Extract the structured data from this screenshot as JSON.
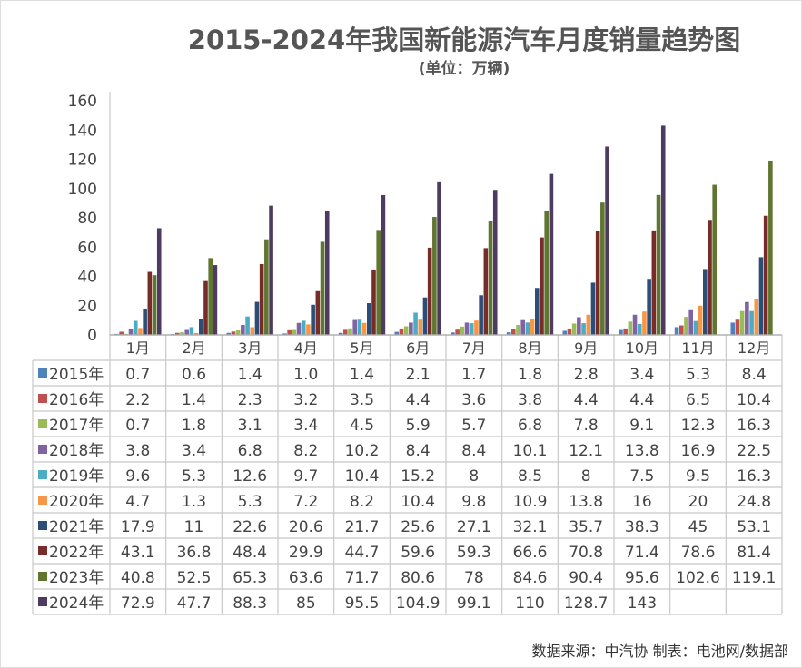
{
  "chart_data": {
    "type": "bar",
    "title": "2015-2024年我国新能源汽车月度销量趋势图",
    "subtitle": "(单位：万辆)",
    "ylim": [
      0,
      160
    ],
    "yticks": [
      0,
      20,
      40,
      60,
      80,
      100,
      120,
      140,
      160
    ],
    "grid": false,
    "legend": "data-table",
    "categories": [
      "1月",
      "2月",
      "3月",
      "4月",
      "5月",
      "6月",
      "7月",
      "8月",
      "9月",
      "10月",
      "11月",
      "12月"
    ],
    "series": [
      {
        "name": "2015年",
        "color": "#4F81BD",
        "values": [
          "0.7",
          "0.6",
          "1.4",
          "1.0",
          "1.4",
          "2.1",
          "1.7",
          "1.8",
          "2.8",
          "3.4",
          "5.3",
          "8.4"
        ]
      },
      {
        "name": "2016年",
        "color": "#C0504D",
        "values": [
          "2.2",
          "1.4",
          "2.3",
          "3.2",
          "3.5",
          "4.4",
          "3.6",
          "3.8",
          "4.4",
          "4.4",
          "6.5",
          "10.4"
        ]
      },
      {
        "name": "2017年",
        "color": "#9BBB59",
        "values": [
          "0.7",
          "1.8",
          "3.1",
          "3.4",
          "4.5",
          "5.9",
          "5.7",
          "6.8",
          "7.8",
          "9.1",
          "12.3",
          "16.3"
        ]
      },
      {
        "name": "2018年",
        "color": "#8064A2",
        "values": [
          "3.8",
          "3.4",
          "6.8",
          "8.2",
          "10.2",
          "8.4",
          "8.4",
          "10.1",
          "12.1",
          "13.8",
          "16.9",
          "22.5"
        ]
      },
      {
        "name": "2019年",
        "color": "#4BACC6",
        "values": [
          "9.6",
          "5.3",
          "12.6",
          "9.7",
          "10.4",
          "15.2",
          "8",
          "8.5",
          "8",
          "7.5",
          "9.5",
          "16.3"
        ]
      },
      {
        "name": "2020年",
        "color": "#F79646",
        "values": [
          "4.7",
          "1.3",
          "5.3",
          "7.2",
          "8.2",
          "10.4",
          "9.8",
          "10.9",
          "13.8",
          "16",
          "20",
          "24.8"
        ]
      },
      {
        "name": "2021年",
        "color": "#2C4D75",
        "values": [
          "17.9",
          "11",
          "22.6",
          "20.6",
          "21.7",
          "25.6",
          "27.1",
          "32.1",
          "35.7",
          "38.3",
          "45",
          "53.1"
        ]
      },
      {
        "name": "2022年",
        "color": "#772C2A",
        "values": [
          "43.1",
          "36.8",
          "48.4",
          "29.9",
          "44.7",
          "59.6",
          "59.3",
          "66.6",
          "70.8",
          "71.4",
          "78.6",
          "81.4"
        ]
      },
      {
        "name": "2023年",
        "color": "#5F7530",
        "values": [
          "40.8",
          "52.5",
          "65.3",
          "63.6",
          "71.7",
          "80.6",
          "78",
          "84.6",
          "90.4",
          "95.6",
          "102.6",
          "119.1"
        ]
      },
      {
        "name": "2024年",
        "color": "#4D3B62",
        "values": [
          "72.9",
          "47.7",
          "88.3",
          "85",
          "95.5",
          "104.9",
          "99.1",
          "110",
          "128.7",
          "143",
          "",
          ""
        ]
      }
    ]
  },
  "footer": "数据来源：中汽协  制表：电池网/数据部"
}
